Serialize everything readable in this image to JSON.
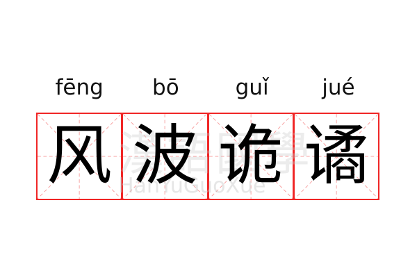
{
  "pinyin": [
    "fēng",
    "bō",
    "guǐ",
    "jué"
  ],
  "characters": [
    "风",
    "波",
    "诡",
    "谲"
  ],
  "watermark": {
    "chinese": "漢語國學",
    "latin": "HanYuGuoXue"
  },
  "colors": {
    "grid_border": "#f02626",
    "guide_lines": "#f7a0a0",
    "text": "#000000"
  }
}
